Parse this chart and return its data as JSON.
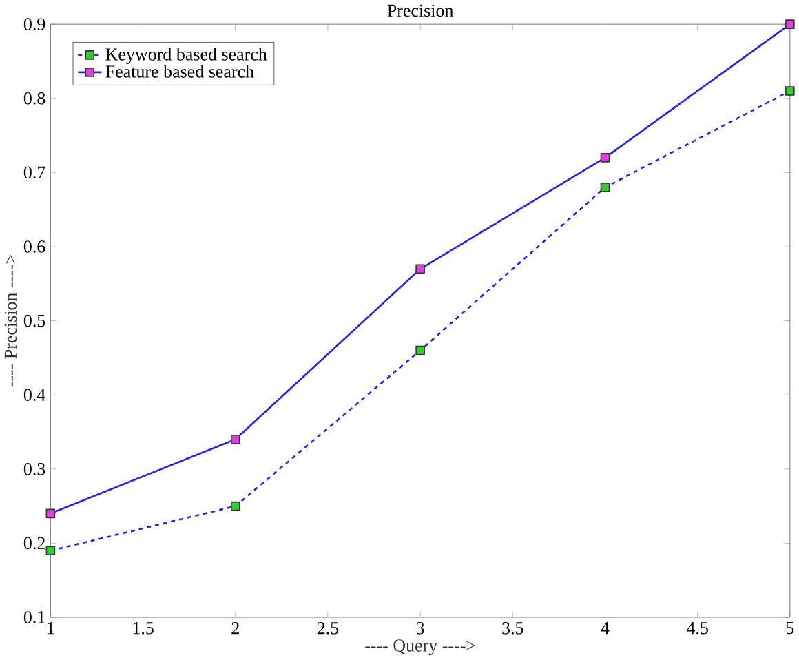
{
  "chart_data": {
    "type": "line",
    "title": "Precision",
    "xlabel": "----   Query   ---->",
    "ylabel": "----   Precision   ---->",
    "x": [
      1,
      2,
      3,
      4,
      5
    ],
    "series": [
      {
        "name": "Keyword based search",
        "color": "#33cc33",
        "values": [
          0.19,
          0.25,
          0.46,
          0.68,
          0.81
        ],
        "line_style": "dashed"
      },
      {
        "name": "Feature based search",
        "color": "#e040e0",
        "values": [
          0.24,
          0.34,
          0.57,
          0.72,
          0.9
        ],
        "line_style": "solid"
      }
    ],
    "xlim": [
      1,
      5
    ],
    "xticks": [
      1,
      1.5,
      2,
      2.5,
      3,
      3.5,
      4,
      4.5,
      5
    ],
    "ylim": [
      0.1,
      0.9
    ],
    "yticks": [
      0.1,
      0.2,
      0.3,
      0.4,
      0.5,
      0.6,
      0.7,
      0.8,
      0.9
    ],
    "marker": "square",
    "legend": "top left",
    "grid": false
  }
}
